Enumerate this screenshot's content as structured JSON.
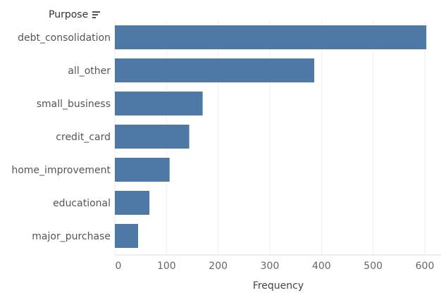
{
  "chart_data": {
    "type": "bar",
    "orientation": "horizontal",
    "row_header": "Purpose",
    "xlabel": "Frequency",
    "ylabel": "",
    "categories": [
      "debt_consolidation",
      "all_other",
      "small_business",
      "credit_card",
      "home_improvement",
      "educational",
      "major_purchase"
    ],
    "values": [
      603,
      386,
      170,
      144,
      106,
      67,
      45
    ],
    "xlim": [
      0,
      620
    ],
    "x_ticks": [
      0,
      100,
      200,
      300,
      400,
      500,
      600
    ],
    "grid": true,
    "legend": "none",
    "bar_color": "#4e79a7",
    "sort_icon": "sort-descending-icon"
  }
}
